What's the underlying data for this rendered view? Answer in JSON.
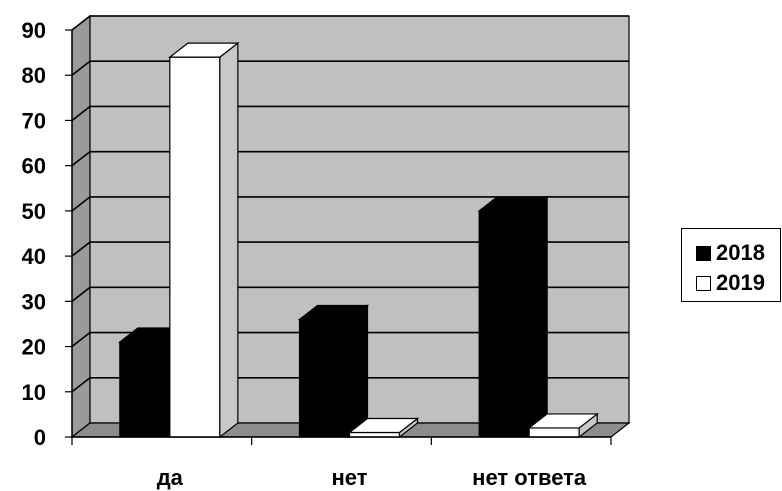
{
  "chart_data": {
    "type": "bar",
    "style": "3d-clustered-column",
    "categories": [
      "да",
      "нет",
      "нет ответа"
    ],
    "series": [
      {
        "name": "2018",
        "color": "#000000",
        "values": [
          21,
          26,
          50
        ]
      },
      {
        "name": "2019",
        "color": "#ffffff",
        "values": [
          84,
          1,
          2
        ]
      }
    ],
    "ylim": [
      0,
      90
    ],
    "ytick_step": 10,
    "yticks": [
      "0",
      "10",
      "20",
      "30",
      "40",
      "50",
      "60",
      "70",
      "80",
      "90"
    ],
    "grid": true,
    "wall_color": "#c0c0c0",
    "legend_position": "right"
  }
}
